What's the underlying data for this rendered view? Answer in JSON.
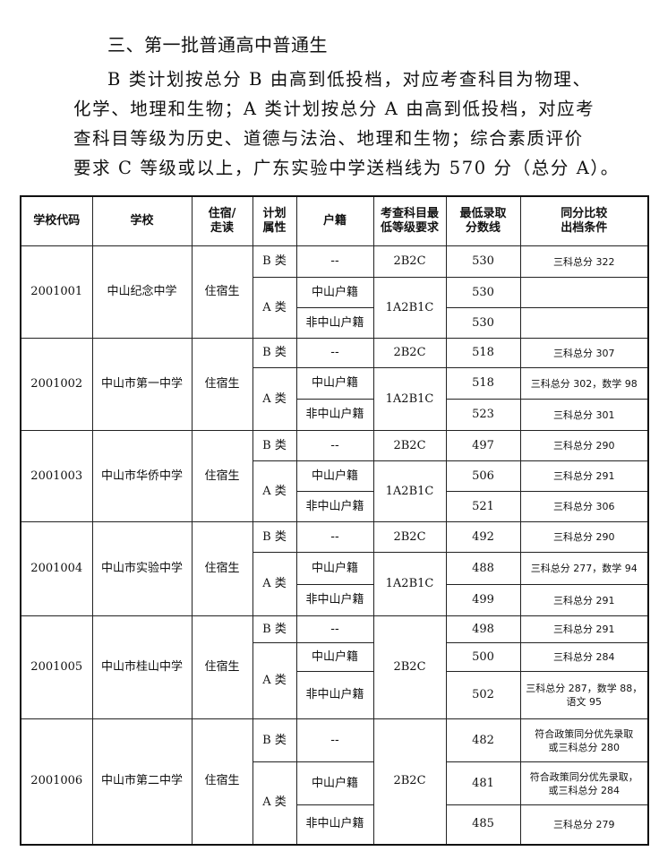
{
  "section_title": "三、第一批普通高中普通生",
  "paragraph_lines": [
    "B 类计划按总分 B 由高到低投档，对应考查科目为物理、",
    "化学、地理和生物；A 类计划按总分 A 由高到低投档，对应考",
    "查科目等级为历史、道德与法治、地理和生物；综合素质评价",
    "要求 C 等级或以上，广东实验中学送档线为 570 分（总分 A）。"
  ],
  "table": {
    "headers": [
      "学校代码",
      "学校",
      "住宿/\n走读",
      "计划\n属性",
      "户籍",
      "考查科目最\n低等级要求",
      "最低录取\n分数线",
      "同分比较\n出档条件"
    ],
    "groups": [
      {
        "code": "2001001",
        "school": "中山纪念中学",
        "residence": "住宿生",
        "grades": [
          "2B2C",
          "1A2B1C"
        ],
        "rows": [
          {
            "plan": "B 类",
            "hukou": "--",
            "score": "530",
            "cond": "三科总分 322"
          },
          {
            "plan": "A 类",
            "hukou": "中山户籍",
            "score": "530",
            "cond": ""
          },
          {
            "hukou": "非中山户籍",
            "score": "530",
            "cond": ""
          }
        ]
      },
      {
        "code": "2001002",
        "school": "中山市第一中学",
        "residence": "住宿生",
        "grades": [
          "2B2C",
          "1A2B1C"
        ],
        "rows": [
          {
            "plan": "B 类",
            "hukou": "--",
            "score": "518",
            "cond": "三科总分 307"
          },
          {
            "plan": "A 类",
            "hukou": "中山户籍",
            "score": "518",
            "cond": "三科总分 302，数学 98"
          },
          {
            "hukou": "非中山户籍",
            "score": "523",
            "cond": "三科总分 301"
          }
        ]
      },
      {
        "code": "2001003",
        "school": "中山市华侨中学",
        "residence": "住宿生",
        "grades": [
          "2B2C",
          "1A2B1C"
        ],
        "rows": [
          {
            "plan": "B 类",
            "hukou": "--",
            "score": "497",
            "cond": "三科总分 290"
          },
          {
            "plan": "A 类",
            "hukou": "中山户籍",
            "score": "506",
            "cond": "三科总分 291"
          },
          {
            "hukou": "非中山户籍",
            "score": "521",
            "cond": "三科总分 306"
          }
        ]
      },
      {
        "code": "2001004",
        "school": "中山市实验中学",
        "residence": "住宿生",
        "grades": [
          "2B2C",
          "1A2B1C"
        ],
        "rows": [
          {
            "plan": "B 类",
            "hukou": "--",
            "score": "492",
            "cond": "三科总分 290"
          },
          {
            "plan": "A 类",
            "hukou": "中山户籍",
            "score": "488",
            "cond": "三科总分 277，数学 94"
          },
          {
            "hukou": "非中山户籍",
            "score": "499",
            "cond": "三科总分 291"
          }
        ]
      },
      {
        "code": "2001005",
        "school": "中山市桂山中学",
        "residence": "住宿生",
        "grades": [
          "2B2C"
        ],
        "rows": [
          {
            "plan": "B 类",
            "hukou": "--",
            "score": "498",
            "cond": "三科总分 291"
          },
          {
            "plan": "A 类",
            "hukou": "中山户籍",
            "score": "500",
            "cond": "三科总分 284"
          },
          {
            "hukou": "非中山户籍",
            "score": "502",
            "cond": "三科总分 287，数学 88，\n语文 95"
          }
        ]
      },
      {
        "code": "2001006",
        "school": "中山市第二中学",
        "residence": "住宿生",
        "grades": [
          "2B2C"
        ],
        "rows": [
          {
            "plan": "B 类",
            "hukou": "--",
            "score": "482",
            "cond": "符合政策同分优先录取\n或三科总分 280"
          },
          {
            "plan": "A 类",
            "hukou": "中山户籍",
            "score": "481",
            "cond": "符合政策同分优先录取，\n或三科总分 284"
          },
          {
            "hukou": "非中山户籍",
            "score": "485",
            "cond": "三科总分 279"
          }
        ]
      }
    ]
  }
}
